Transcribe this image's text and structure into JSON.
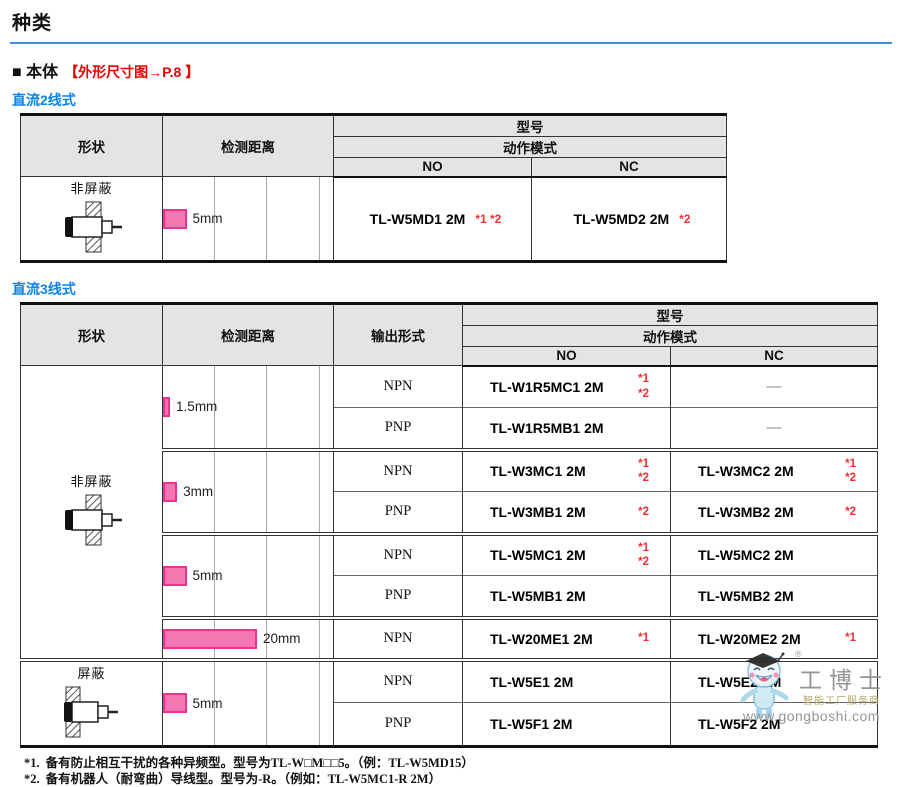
{
  "page": {
    "title": "种类"
  },
  "section": {
    "label": "■ 本体",
    "ref": "【外形尺寸图→P.8 】"
  },
  "table1": {
    "label": "直流2线式",
    "headers": {
      "shape": "形状",
      "distance": "检测距离",
      "model": "型号",
      "mode": "动作模式",
      "no": "NO",
      "nc": "NC"
    },
    "row": {
      "shape": "非屏蔽",
      "distance": {
        "label": "5mm",
        "mm": 5
      },
      "no_model": "TL-W5MD1 2M",
      "no_notes": "*1 *2",
      "nc_model": "TL-W5MD2 2M",
      "nc_notes": "*2"
    }
  },
  "table2": {
    "label": "直流3线式",
    "headers": {
      "shape": "形状",
      "distance": "检测距离",
      "output": "输出形式",
      "model": "型号",
      "mode": "动作模式",
      "no": "NO",
      "nc": "NC"
    },
    "shapes": {
      "unshielded": "非屏蔽",
      "shielded": "屏蔽"
    },
    "distances": [
      {
        "label": "1.5mm",
        "mm": 1.5
      },
      {
        "label": "3mm",
        "mm": 3
      },
      {
        "label": "5mm",
        "mm": 5
      },
      {
        "label": "20mm",
        "mm": 20
      },
      {
        "label": "5mm",
        "mm": 5
      }
    ],
    "rows": [
      {
        "output": "NPN",
        "no_model": "TL-W1R5MC1 2M",
        "no_note1": "*1",
        "no_note2": "*2",
        "nc_model": "—"
      },
      {
        "output": "PNP",
        "no_model": "TL-W1R5MB1 2M",
        "nc_model": "—"
      },
      {
        "output": "NPN",
        "no_model": "TL-W3MC1 2M",
        "no_note1": "*1",
        "no_note2": "*2",
        "nc_model": "TL-W3MC2 2M",
        "nc_note1": "*1",
        "nc_note2": "*2"
      },
      {
        "output": "PNP",
        "no_model": "TL-W3MB1 2M",
        "no_note1": "*2",
        "nc_model": "TL-W3MB2 2M",
        "nc_note1": "*2"
      },
      {
        "output": "NPN",
        "no_model": "TL-W5MC1 2M",
        "no_note1": "*1",
        "no_note2": "*2",
        "nc_model": "TL-W5MC2 2M"
      },
      {
        "output": "PNP",
        "no_model": "TL-W5MB1 2M",
        "nc_model": "TL-W5MB2 2M"
      },
      {
        "output": "NPN",
        "no_model": "TL-W20ME1 2M",
        "no_note1": "*1",
        "nc_model": "TL-W20ME2 2M",
        "nc_note1": "*1"
      },
      {
        "output": "NPN",
        "no_model": "TL-W5E1 2M",
        "nc_model": "TL-W5E2 2M"
      },
      {
        "output": "PNP",
        "no_model": "TL-W5F1 2M",
        "nc_model": "TL-W5F2 2M"
      }
    ]
  },
  "footnotes": [
    {
      "marker": "*1.",
      "text": "备有防止相互干扰的各种异频型。型号为TL-W□M□□5。（例：TL-W5MD15）"
    },
    {
      "marker": "*2.",
      "text": "备有机器人（耐弯曲）导线型。型号为-R。（例如：TL-W5MC1-R 2M）"
    }
  ],
  "watermark": {
    "brand": "工博士",
    "reg": "®",
    "tagline": "智能工厂服务商",
    "url": "www.gongboshi.com"
  }
}
